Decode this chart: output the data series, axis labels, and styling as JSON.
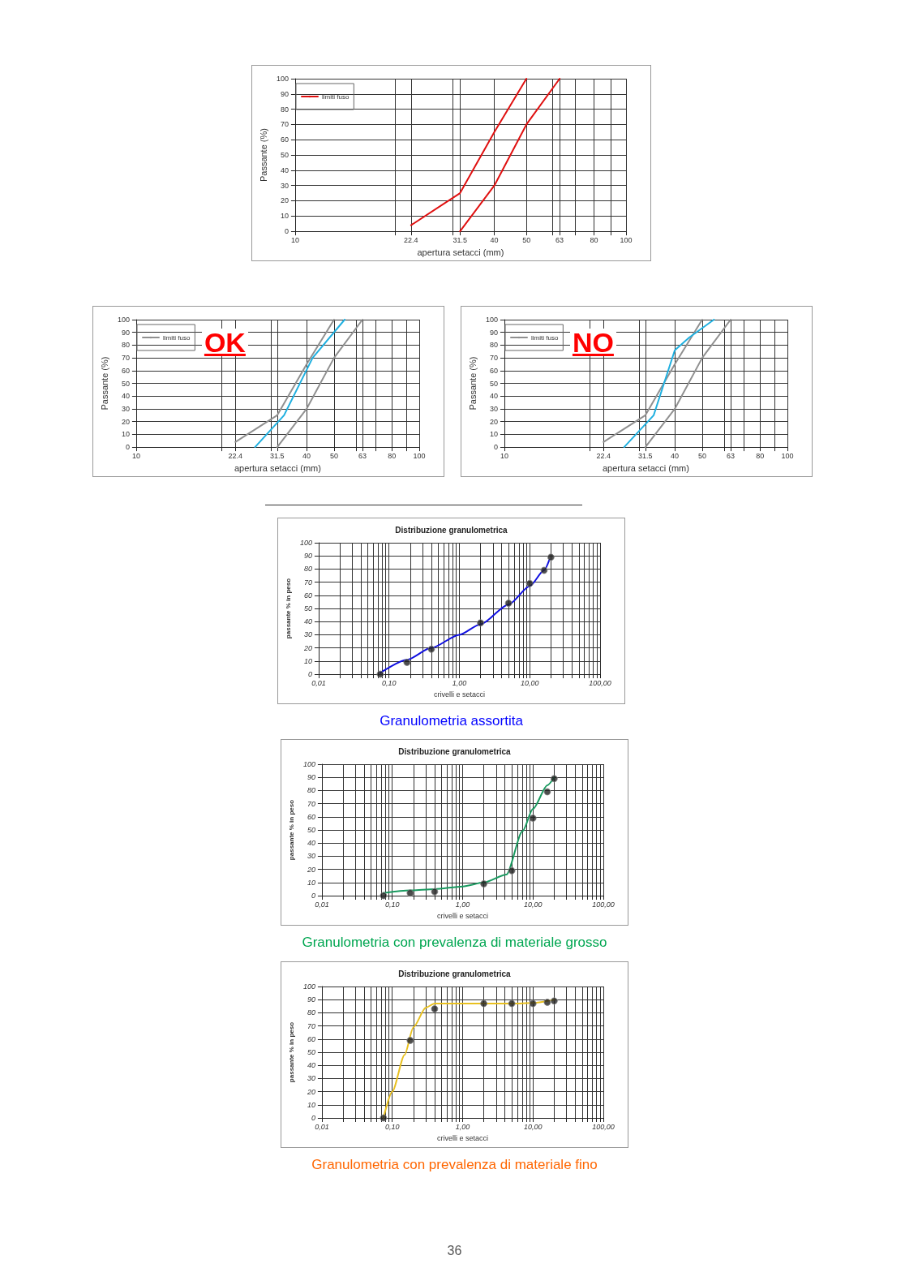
{
  "chart_data": [
    {
      "type": "line",
      "xlabel": "apertura setacci (mm)",
      "ylabel": "Passante (%)",
      "log": "x",
      "xlim": [
        10,
        100
      ],
      "xticks": [
        10,
        {
          "value": 20,
          "label": null
        },
        22.4,
        {
          "value": 30,
          "label": null
        },
        31.5,
        40,
        50,
        {
          "value": 60,
          "label": null
        },
        63,
        {
          "value": 70,
          "label": null
        },
        80,
        {
          "value": 90,
          "label": null
        },
        100
      ],
      "ylim": [
        0,
        100
      ],
      "yticks": [
        0,
        10,
        20,
        30,
        40,
        50,
        60,
        70,
        80,
        90,
        100
      ],
      "grid": true,
      "legend": "top left",
      "marker": "none",
      "series": [
        {
          "name": "limiti fuso",
          "color": "#e01010",
          "x": [
            22.4,
            31.5,
            40,
            50
          ],
          "values": [
            4,
            25,
            65,
            100
          ]
        },
        {
          "color": "#e01010",
          "x": [
            31.5,
            40,
            50,
            63
          ],
          "values": [
            0,
            30,
            70,
            100
          ]
        }
      ]
    },
    {
      "type": "line",
      "xlabel": "apertura setacci (mm)",
      "ylabel": "Passante (%)",
      "log": "x",
      "xlim": [
        10,
        100
      ],
      "xticks": [
        10,
        {
          "value": 20,
          "label": null
        },
        22.4,
        {
          "value": 30,
          "label": null
        },
        31.5,
        40,
        50,
        {
          "value": 60,
          "label": null
        },
        63,
        {
          "value": 70,
          "label": null
        },
        80,
        {
          "value": 90,
          "label": null
        },
        100
      ],
      "ylim": [
        0,
        100
      ],
      "yticks": [
        0,
        10,
        20,
        30,
        40,
        50,
        60,
        70,
        80,
        90,
        100
      ],
      "grid": true,
      "legend": "top left",
      "marker": "none",
      "annotations": [
        "OK"
      ],
      "series": [
        {
          "name": "limiti fuso",
          "color": "#909090",
          "x": [
            22.4,
            31.5,
            40,
            50
          ],
          "values": [
            4,
            25,
            65,
            100
          ]
        },
        {
          "color": "#909090",
          "x": [
            31.5,
            40,
            50,
            63
          ],
          "values": [
            0,
            30,
            70,
            100
          ]
        },
        {
          "color": "#20b0e0",
          "x": [
            26.3,
            33.3,
            42,
            54.5
          ],
          "values": [
            0,
            25,
            70,
            100
          ]
        }
      ]
    },
    {
      "type": "line",
      "xlabel": "apertura setacci (mm)",
      "ylabel": "Passante (%)",
      "log": "x",
      "xlim": [
        10,
        100
      ],
      "xticks": [
        10,
        {
          "value": 20,
          "label": null
        },
        22.4,
        {
          "value": 30,
          "label": null
        },
        31.5,
        40,
        50,
        {
          "value": 60,
          "label": null
        },
        63,
        {
          "value": 70,
          "label": null
        },
        80,
        {
          "value": 90,
          "label": null
        },
        100
      ],
      "ylim": [
        0,
        100
      ],
      "yticks": [
        0,
        10,
        20,
        30,
        40,
        50,
        60,
        70,
        80,
        90,
        100
      ],
      "grid": true,
      "legend": "top left",
      "marker": "none",
      "annotations": [
        "NO"
      ],
      "series": [
        {
          "name": "limiti fuso",
          "color": "#909090",
          "x": [
            22.4,
            31.5,
            40,
            50
          ],
          "values": [
            4,
            25,
            65,
            100
          ]
        },
        {
          "color": "#909090",
          "x": [
            31.5,
            40,
            50,
            63
          ],
          "values": [
            0,
            30,
            70,
            100
          ]
        },
        {
          "color": "#20b0e0",
          "x": [
            26.5,
            33.7,
            40,
            45,
            55
          ],
          "values": [
            0,
            25,
            76,
            86,
            100
          ]
        }
      ]
    },
    {
      "type": "line",
      "title": "Distribuzione granulometrica",
      "xlabel": "crivelli e setacci",
      "ylabel": "passante % in peso",
      "log": "x",
      "xlim": [
        0.01,
        100
      ],
      "xticks": [
        {
          "value": 0.01,
          "label": "0,01"
        },
        {
          "value": 0.02,
          "label": null
        },
        {
          "value": 0.03,
          "label": null
        },
        {
          "value": 0.04,
          "label": null
        },
        {
          "value": 0.05,
          "label": null
        },
        {
          "value": 0.06,
          "label": null
        },
        {
          "value": 0.07,
          "label": null
        },
        {
          "value": 0.08,
          "label": null
        },
        {
          "value": 0.09,
          "label": null
        },
        {
          "value": 0.1,
          "label": "0,10"
        },
        {
          "value": 0.2,
          "label": null
        },
        {
          "value": 0.3,
          "label": null
        },
        {
          "value": 0.4,
          "label": null
        },
        {
          "value": 0.5,
          "label": null
        },
        {
          "value": 0.6,
          "label": null
        },
        {
          "value": 0.7,
          "label": null
        },
        {
          "value": 0.8,
          "label": null
        },
        {
          "value": 0.9,
          "label": null
        },
        {
          "value": 1,
          "label": "1,00"
        },
        {
          "value": 2,
          "label": null
        },
        {
          "value": 3,
          "label": null
        },
        {
          "value": 4,
          "label": null
        },
        {
          "value": 5,
          "label": null
        },
        {
          "value": 6,
          "label": null
        },
        {
          "value": 7,
          "label": null
        },
        {
          "value": 8,
          "label": null
        },
        {
          "value": 9,
          "label": null
        },
        {
          "value": 10,
          "label": "10,00"
        },
        {
          "value": 20,
          "label": null
        },
        {
          "value": 30,
          "label": null
        },
        {
          "value": 40,
          "label": null
        },
        {
          "value": 50,
          "label": null
        },
        {
          "value": 60,
          "label": null
        },
        {
          "value": 70,
          "label": null
        },
        {
          "value": 80,
          "label": null
        },
        {
          "value": 90,
          "label": null
        },
        {
          "value": 100,
          "label": "100,00"
        }
      ],
      "ylim": [
        0,
        100
      ],
      "yticks": [
        0,
        10,
        20,
        30,
        40,
        50,
        60,
        70,
        80,
        90,
        100
      ],
      "grid": true,
      "marker": "none",
      "annotations": [
        "Granulometria assortita"
      ],
      "series": [
        {
          "color": "#1010e0",
          "x": [
            0.075,
            0.18,
            0.4,
            1,
            2,
            5,
            10,
            16,
            19
          ],
          "values": [
            1,
            11,
            20,
            30,
            38,
            53,
            67,
            79,
            87
          ]
        },
        {
          "type": "scatter",
          "marker": "circle",
          "color": "#202020",
          "x": [
            0.075,
            0.18,
            0.4,
            2,
            5,
            10,
            16,
            20
          ],
          "values": [
            0,
            9,
            19,
            39,
            54,
            69,
            79,
            89
          ]
        }
      ]
    },
    {
      "type": "line",
      "title": "Distribuzione granulometrica",
      "xlabel": "crivelli e setacci",
      "ylabel": "passante % in peso",
      "log": "x",
      "xlim": [
        0.01,
        100
      ],
      "xticks": [
        {
          "value": 0.01,
          "label": "0,01"
        },
        {
          "value": 0.02,
          "label": null
        },
        {
          "value": 0.03,
          "label": null
        },
        {
          "value": 0.04,
          "label": null
        },
        {
          "value": 0.05,
          "label": null
        },
        {
          "value": 0.06,
          "label": null
        },
        {
          "value": 0.07,
          "label": null
        },
        {
          "value": 0.08,
          "label": null
        },
        {
          "value": 0.09,
          "label": null
        },
        {
          "value": 0.1,
          "label": "0,10"
        },
        {
          "value": 0.2,
          "label": null
        },
        {
          "value": 0.3,
          "label": null
        },
        {
          "value": 0.4,
          "label": null
        },
        {
          "value": 0.5,
          "label": null
        },
        {
          "value": 0.6,
          "label": null
        },
        {
          "value": 0.7,
          "label": null
        },
        {
          "value": 0.8,
          "label": null
        },
        {
          "value": 0.9,
          "label": null
        },
        {
          "value": 1,
          "label": "1,00"
        },
        {
          "value": 2,
          "label": null
        },
        {
          "value": 3,
          "label": null
        },
        {
          "value": 4,
          "label": null
        },
        {
          "value": 5,
          "label": null
        },
        {
          "value": 6,
          "label": null
        },
        {
          "value": 7,
          "label": null
        },
        {
          "value": 8,
          "label": null
        },
        {
          "value": 9,
          "label": null
        },
        {
          "value": 10,
          "label": "10,00"
        },
        {
          "value": 20,
          "label": null
        },
        {
          "value": 30,
          "label": null
        },
        {
          "value": 40,
          "label": null
        },
        {
          "value": 50,
          "label": null
        },
        {
          "value": 60,
          "label": null
        },
        {
          "value": 70,
          "label": null
        },
        {
          "value": 80,
          "label": null
        },
        {
          "value": 90,
          "label": null
        },
        {
          "value": 100,
          "label": "100,00"
        }
      ],
      "ylim": [
        0,
        100
      ],
      "yticks": [
        0,
        10,
        20,
        30,
        40,
        50,
        60,
        70,
        80,
        90,
        100
      ],
      "grid": true,
      "marker": "none",
      "annotations": [
        "Granulometria con prevalenza di materiale grosso"
      ],
      "series": [
        {
          "color": "#1a9a60",
          "x": [
            0.075,
            0.18,
            0.4,
            1,
            2,
            4.2,
            7.1,
            10,
            16,
            20
          ],
          "values": [
            2,
            4,
            5,
            7,
            10,
            16,
            49,
            66,
            84,
            90
          ]
        },
        {
          "type": "scatter",
          "marker": "circle",
          "color": "#202020",
          "x": [
            0.075,
            0.18,
            0.4,
            2,
            5,
            10,
            16,
            20
          ],
          "values": [
            0,
            2,
            3,
            9,
            19,
            59,
            79,
            89
          ]
        }
      ]
    },
    {
      "type": "line",
      "title": "Distribuzione granulometrica",
      "xlabel": "crivelli e setacci",
      "ylabel": "passante % in peso",
      "log": "x",
      "xlim": [
        0.01,
        100
      ],
      "xticks": [
        {
          "value": 0.01,
          "label": "0,01"
        },
        {
          "value": 0.02,
          "label": null
        },
        {
          "value": 0.03,
          "label": null
        },
        {
          "value": 0.04,
          "label": null
        },
        {
          "value": 0.05,
          "label": null
        },
        {
          "value": 0.06,
          "label": null
        },
        {
          "value": 0.07,
          "label": null
        },
        {
          "value": 0.08,
          "label": null
        },
        {
          "value": 0.09,
          "label": null
        },
        {
          "value": 0.1,
          "label": "0,10"
        },
        {
          "value": 0.2,
          "label": null
        },
        {
          "value": 0.3,
          "label": null
        },
        {
          "value": 0.4,
          "label": null
        },
        {
          "value": 0.5,
          "label": null
        },
        {
          "value": 0.6,
          "label": null
        },
        {
          "value": 0.7,
          "label": null
        },
        {
          "value": 0.8,
          "label": null
        },
        {
          "value": 0.9,
          "label": null
        },
        {
          "value": 1,
          "label": "1,00"
        },
        {
          "value": 2,
          "label": null
        },
        {
          "value": 3,
          "label": null
        },
        {
          "value": 4,
          "label": null
        },
        {
          "value": 5,
          "label": null
        },
        {
          "value": 6,
          "label": null
        },
        {
          "value": 7,
          "label": null
        },
        {
          "value": 8,
          "label": null
        },
        {
          "value": 9,
          "label": null
        },
        {
          "value": 10,
          "label": "10,00"
        },
        {
          "value": 20,
          "label": null
        },
        {
          "value": 30,
          "label": null
        },
        {
          "value": 40,
          "label": null
        },
        {
          "value": 50,
          "label": null
        },
        {
          "value": 60,
          "label": null
        },
        {
          "value": 70,
          "label": null
        },
        {
          "value": 80,
          "label": null
        },
        {
          "value": 90,
          "label": null
        },
        {
          "value": 100,
          "label": "100,00"
        }
      ],
      "ylim": [
        0,
        100
      ],
      "yticks": [
        0,
        10,
        20,
        30,
        40,
        50,
        60,
        70,
        80,
        90,
        100
      ],
      "grid": true,
      "marker": "none",
      "annotations": [
        "Granulometria con prevalenza di materiale fino",
        "36"
      ],
      "series": [
        {
          "color": "#e8c020",
          "x": [
            0.075,
            0.1,
            0.15,
            0.2,
            0.3,
            0.4,
            1,
            5,
            10,
            20
          ],
          "values": [
            0,
            20,
            48,
            69,
            84,
            87,
            87,
            87,
            87.5,
            90
          ]
        },
        {
          "type": "scatter",
          "marker": "circle",
          "color": "#202020",
          "x": [
            0.075,
            0.18,
            0.4,
            2,
            5,
            10,
            16,
            20
          ],
          "values": [
            0,
            59,
            83,
            87,
            87,
            87,
            88,
            89
          ]
        }
      ]
    }
  ]
}
